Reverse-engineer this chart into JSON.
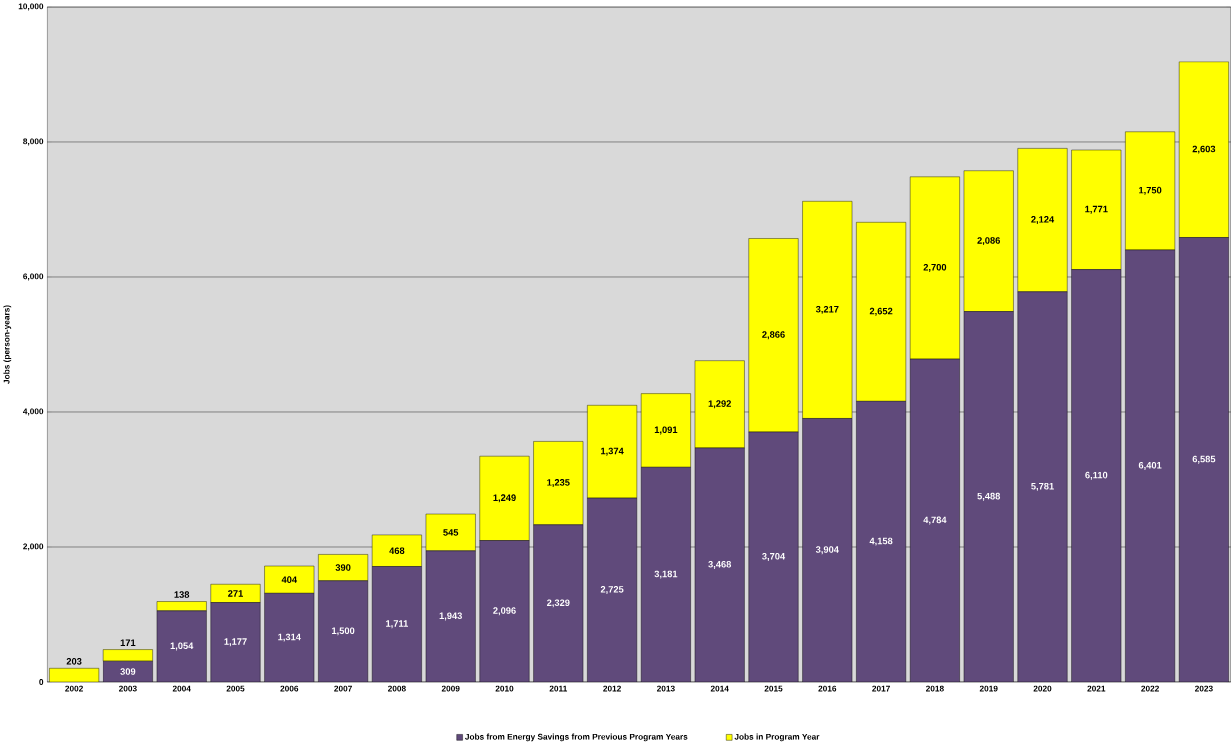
{
  "chart_data": {
    "type": "bar",
    "stacked": true,
    "ylabel": "Jobs (person-years)",
    "categories": [
      "2002",
      "2003",
      "2004",
      "2005",
      "2006",
      "2007",
      "2008",
      "2009",
      "2010",
      "2011",
      "2012",
      "2013",
      "2014",
      "2015",
      "2016",
      "2017",
      "2018",
      "2019",
      "2020",
      "2021",
      "2022",
      "2023"
    ],
    "series": [
      {
        "name": "Jobs from Energy Savings from Previous Program Years",
        "color": "#604a7b",
        "values": [
          0,
          309,
          1054,
          1177,
          1314,
          1500,
          1711,
          1943,
          2096,
          2329,
          2725,
          3181,
          3468,
          3704,
          3904,
          4158,
          4784,
          5488,
          5781,
          6110,
          6401,
          6585
        ],
        "value_labels": [
          null,
          "309",
          "1,054",
          "1,177",
          "1,314",
          "1,500",
          "1,711",
          "1,943",
          "2,096",
          "2,329",
          "2,725",
          "3,181",
          "3,468",
          "3,704",
          "3,904",
          "4,158",
          "4,784",
          "5,488",
          "5,781",
          "6,110",
          "6,401",
          "6,585"
        ]
      },
      {
        "name": "Jobs in Program Year",
        "color": "#ffff00",
        "values": [
          203,
          171,
          138,
          271,
          404,
          390,
          468,
          545,
          1249,
          1235,
          1374,
          1091,
          1292,
          2866,
          3217,
          2652,
          2700,
          2086,
          2124,
          1771,
          1750,
          2603
        ],
        "value_labels": [
          "203",
          "171",
          "138",
          "271",
          "404",
          "390",
          "468",
          "545",
          "1,249",
          "1,235",
          "1,374",
          "1,091",
          "1,292",
          "2,866",
          "3,217",
          "2,652",
          "2,700",
          "2,086",
          "2,124",
          "1,771",
          "1,750",
          "2,603"
        ]
      }
    ],
    "ylim": [
      0,
      10000
    ],
    "yticks": [
      {
        "value": 0,
        "label": "0"
      },
      {
        "value": 2000,
        "label": "2,000"
      },
      {
        "value": 4000,
        "label": "4,000"
      },
      {
        "value": 6000,
        "label": "6,000"
      },
      {
        "value": 8000,
        "label": "8,000"
      },
      {
        "value": 10000,
        "label": "10,000"
      }
    ],
    "grid": "y",
    "legend": "bottom"
  }
}
